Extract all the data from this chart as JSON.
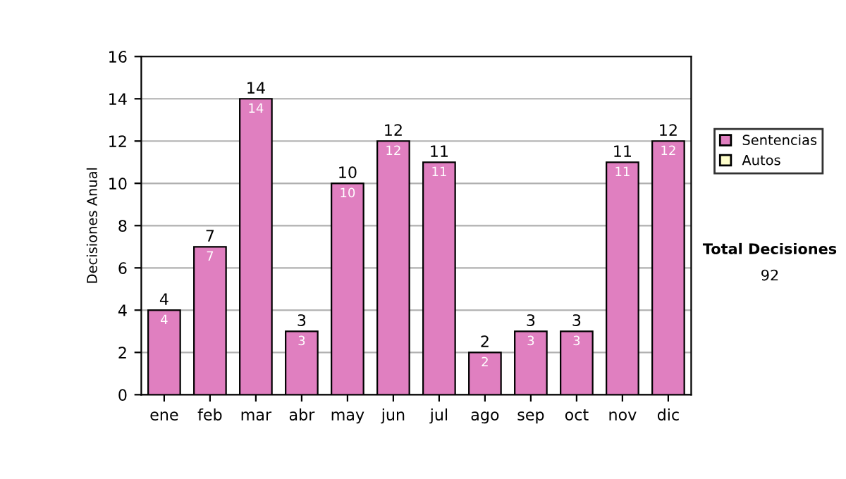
{
  "chart_data": {
    "type": "bar",
    "stacked": true,
    "ylabel": "Decisiones Anual",
    "categories": [
      "ene",
      "feb",
      "mar",
      "abr",
      "may",
      "jun",
      "jul",
      "ago",
      "sep",
      "oct",
      "nov",
      "dic"
    ],
    "series": [
      {
        "name": "Sentencias",
        "color": "#e07fc0",
        "values": [
          4,
          7,
          14,
          3,
          10,
          12,
          11,
          2,
          3,
          3,
          11,
          12
        ],
        "value_labels": [
          "4",
          "7",
          "14",
          "3",
          "10",
          "12",
          "11",
          "2",
          "3",
          "3",
          "11",
          "12"
        ]
      },
      {
        "name": "Autos",
        "color": "#ffffcc",
        "values": [
          null,
          null,
          null,
          null,
          null,
          null,
          null,
          null,
          null,
          null,
          null,
          null
        ]
      }
    ],
    "totals": [
      "4",
      "7",
      "14",
      "3",
      "10",
      "12",
      "11",
      "2",
      "3",
      "3",
      "11",
      "12"
    ],
    "ylim": [
      0,
      16
    ],
    "yticks": [
      0,
      2,
      4,
      6,
      8,
      10,
      12,
      14,
      16
    ],
    "grid": "y",
    "legend": "right",
    "annotations": [
      "Total Decisiones",
      "92"
    ]
  }
}
